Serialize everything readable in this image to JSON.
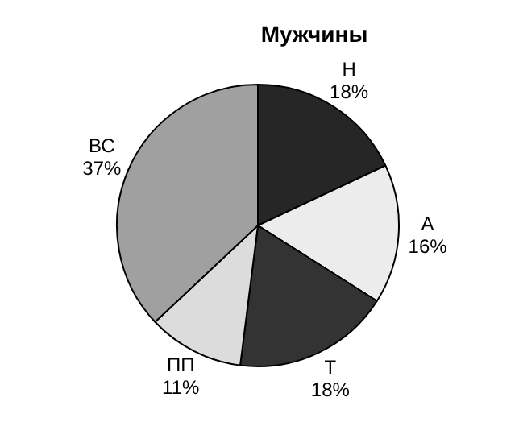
{
  "chart_data": {
    "type": "pie",
    "title": "Мужчины",
    "categories": [
      "Н",
      "А",
      "Т",
      "ПП",
      "ВС"
    ],
    "values": [
      18,
      16,
      18,
      11,
      37
    ],
    "value_labels": [
      "18%",
      "16%",
      "18%",
      "11%",
      "37%"
    ],
    "colors": [
      "#262626",
      "#ececec",
      "#333333",
      "#dcdcdc",
      "#a0a0a0"
    ],
    "legend": false
  }
}
